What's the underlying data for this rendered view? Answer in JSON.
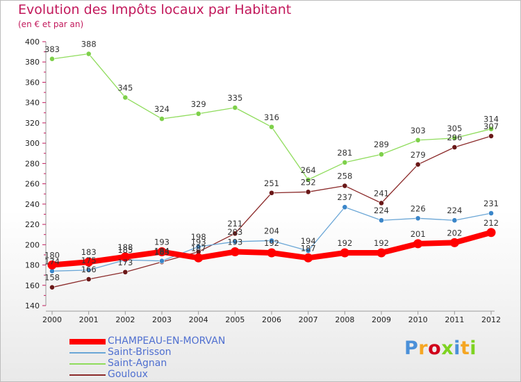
{
  "chart_data": {
    "type": "line",
    "title": "Evolution des Impôts locaux par Habitant",
    "subtitle": "(en € et par an)",
    "xlabel": "",
    "ylabel": "",
    "x": [
      "2000",
      "2001",
      "2002",
      "2003",
      "2004",
      "2005",
      "2006",
      "2007",
      "2008",
      "2009",
      "2010",
      "2011",
      "2012"
    ],
    "ylim": [
      140,
      400
    ],
    "yticks": [
      140,
      160,
      180,
      200,
      220,
      240,
      260,
      280,
      300,
      320,
      340,
      360,
      380,
      400
    ],
    "grid": false,
    "legend_position": "bottom-left",
    "series": [
      {
        "name": "Saint-Agnan",
        "color": "#8fdc5c",
        "point_color": "#7ed04a",
        "values": [
          383,
          388,
          345,
          324,
          329,
          335,
          316,
          264,
          281,
          289,
          303,
          305,
          314
        ]
      },
      {
        "name": "Gouloux",
        "color": "#8b2a2a",
        "point_color": "#6a1818",
        "values": [
          158,
          166,
          173,
          183,
          193,
          211,
          251,
          252,
          258,
          241,
          279,
          296,
          307
        ]
      },
      {
        "name": "Saint-Brisson",
        "color": "#6aa6d6",
        "point_color": "#3b86c9",
        "values": [
          174,
          175,
          185,
          184,
          198,
          203,
          204,
          194,
          237,
          224,
          226,
          224,
          231
        ]
      },
      {
        "name": "CHAMPEAU-EN-MORVAN",
        "color": "#ff0000",
        "point_color": "#ff0000",
        "values": [
          180,
          183,
          188,
          193,
          187,
          193,
          192,
          187,
          192,
          192,
          201,
          202,
          212
        ]
      }
    ],
    "legend_order": [
      "CHAMPEAU-EN-MORVAN",
      "Saint-Brisson",
      "Saint-Agnan",
      "Gouloux"
    ]
  },
  "logo": {
    "letters": [
      "P",
      "r",
      "o",
      "x",
      "i",
      "t",
      "i"
    ],
    "colors": [
      "#4a90d9",
      "#f5a623",
      "#d0021b",
      "#7ed321",
      "#4a90d9",
      "#f5a623",
      "#7ed321"
    ]
  }
}
